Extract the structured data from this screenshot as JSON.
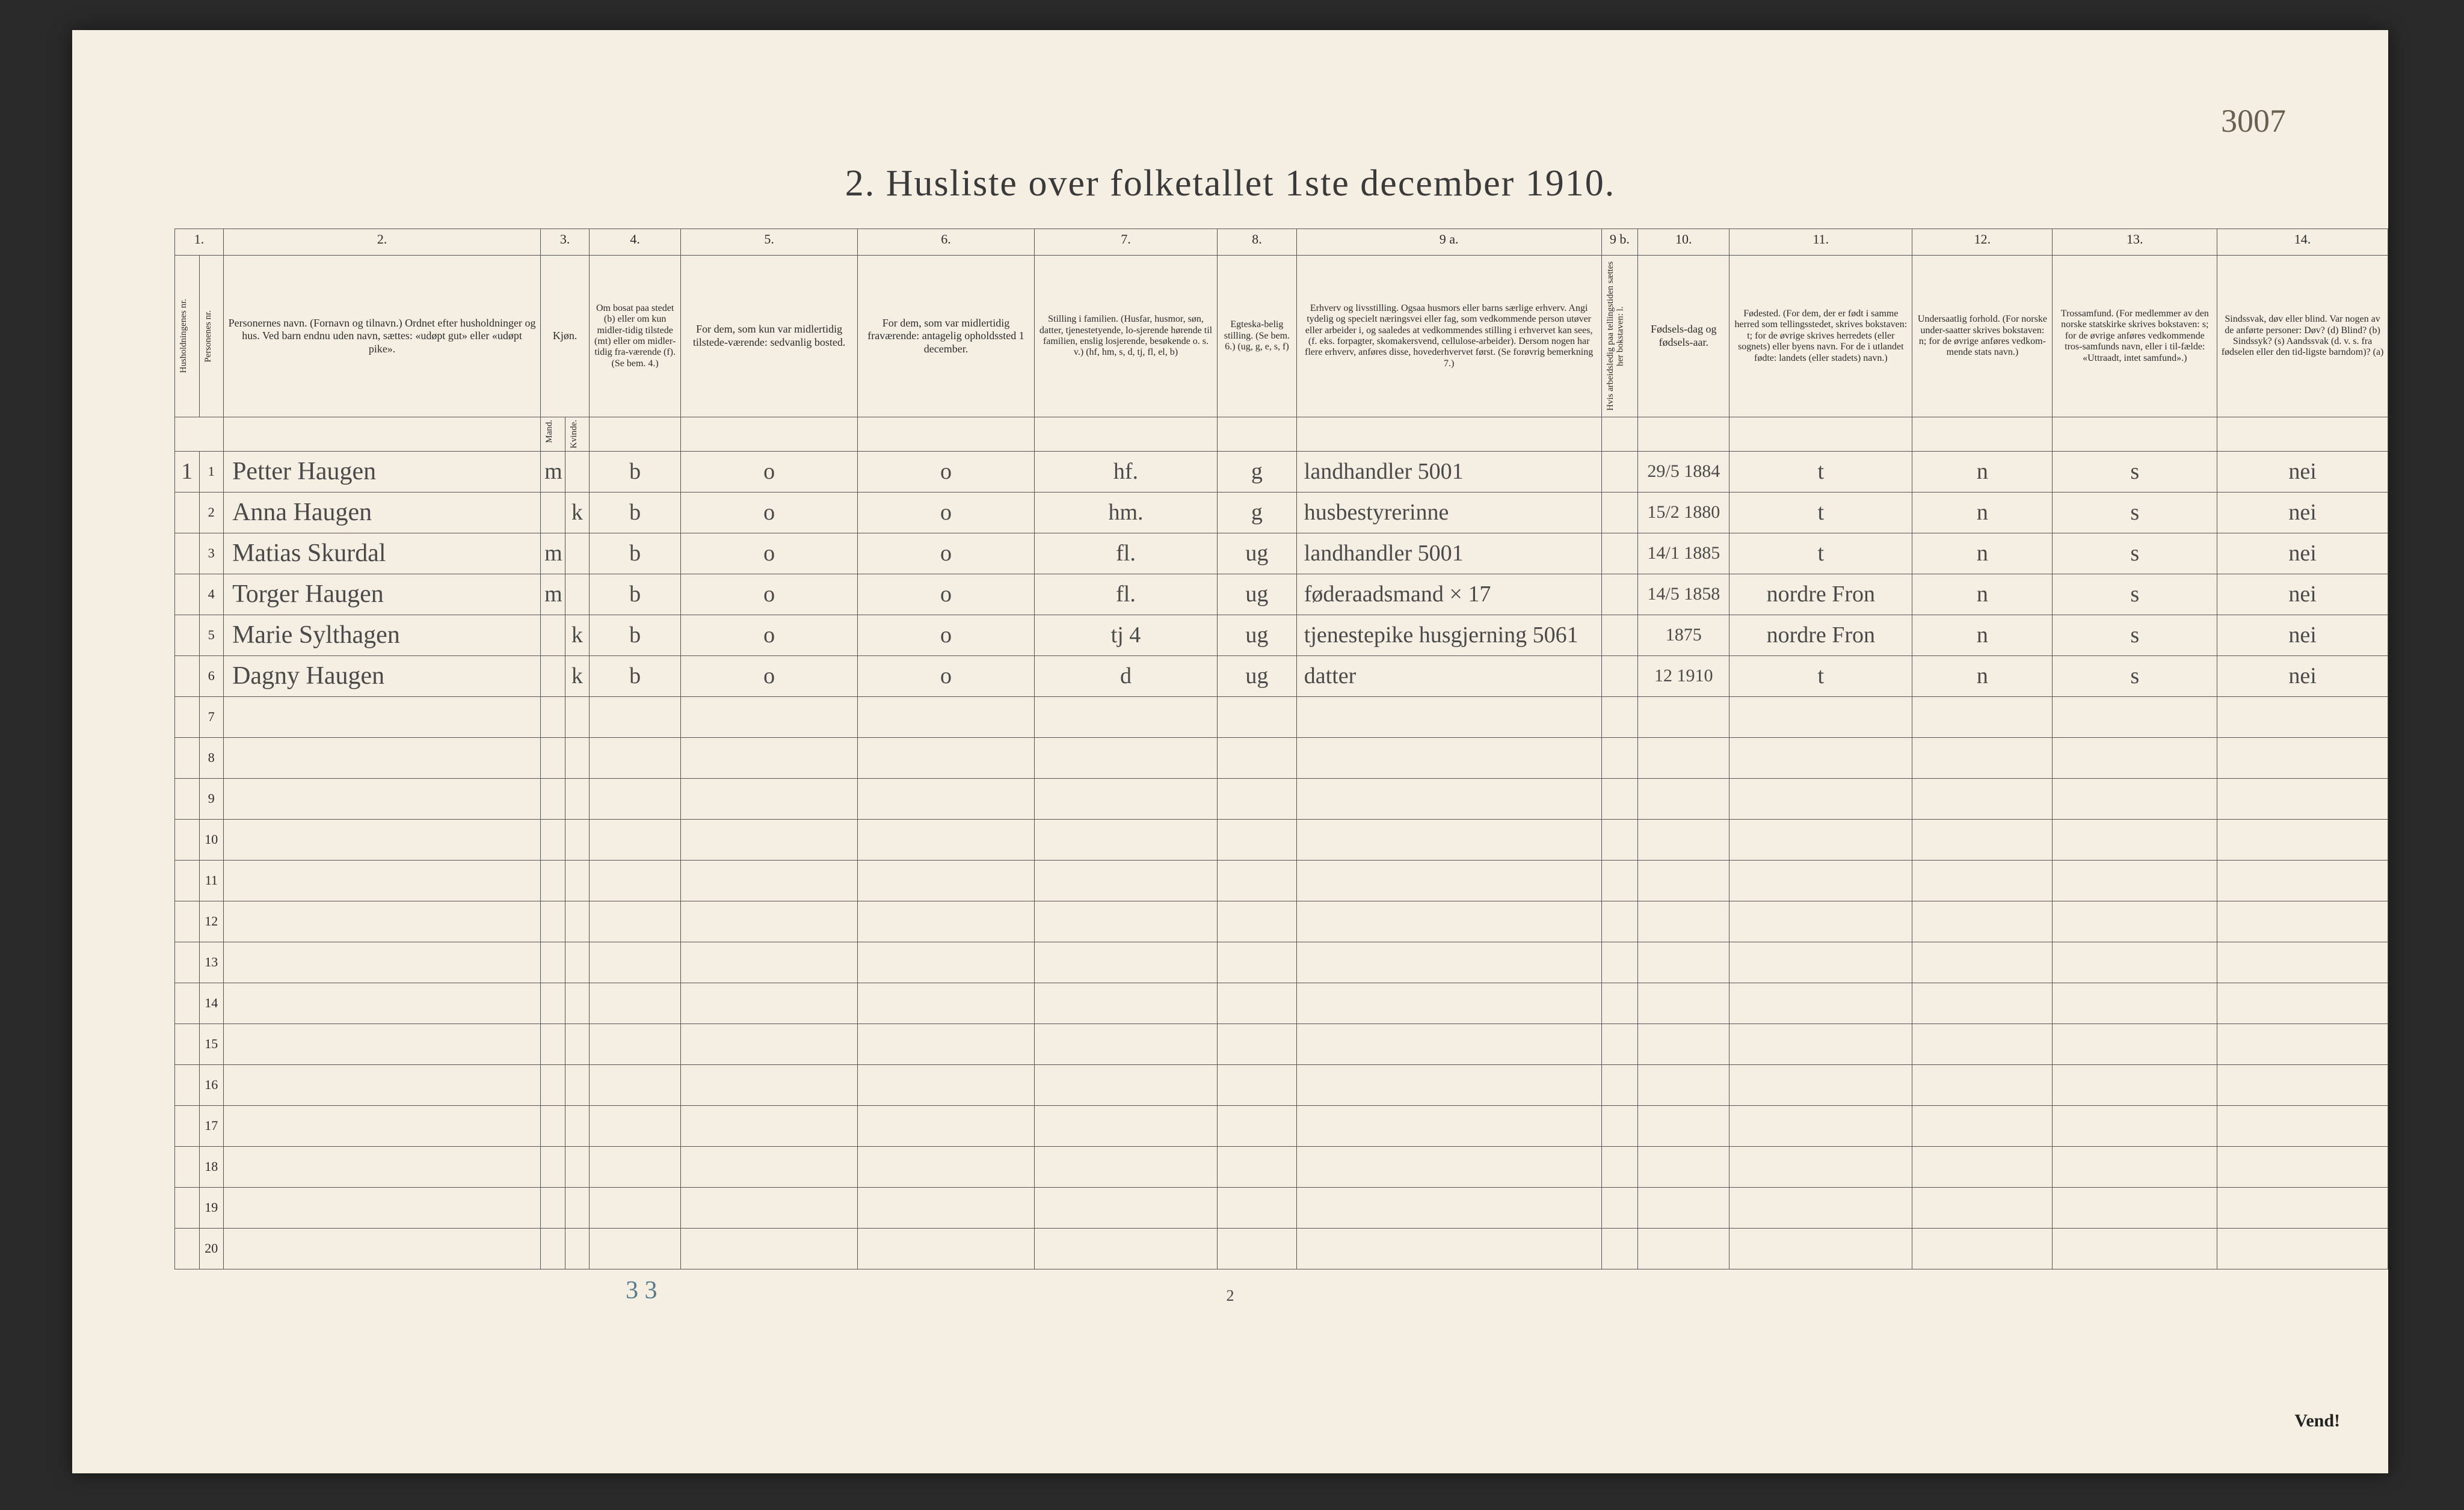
{
  "topRightMark": "3007",
  "title": "2.  Husliste over folketallet 1ste december 1910.",
  "columnNumbers": [
    "1.",
    "2.",
    "3.",
    "4.",
    "5.",
    "6.",
    "7.",
    "8.",
    "9 a.",
    "9 b.",
    "10.",
    "11.",
    "12.",
    "13.",
    "14."
  ],
  "headers": {
    "c1a": "Husholdningenes nr.",
    "c1b": "Personenes nr.",
    "c2": "Personernes navn.\n(Fornavn og tilnavn.)\nOrdnet efter husholdninger og hus.\nVed barn endnu uden navn, sættes: «udøpt gut» eller «udøpt pike».",
    "c3": "Kjøn.",
    "c3m": "Mand.",
    "c3k": "Kvinde.",
    "c3sub": "m.  k.",
    "c4": "Om bosat paa stedet (b) eller om kun midler-tidig tilstede (mt) eller om midler-tidig fra-værende (f). (Se bem. 4.)",
    "c5": "For dem, som kun var midlertidig tilstede-værende:\n\nsedvanlig bosted.",
    "c6": "For dem, som var midlertidig fraværende:\n\nantagelig opholdssted 1 december.",
    "c7": "Stilling i familien.\n(Husfar, husmor, søn, datter, tjenestetyende, lo-sjerende hørende til familien, enslig losjerende, besøkende o. s. v.)\n(hf, hm, s, d, tj, fl, el, b)",
    "c8": "Egteska-belig stilling.\n(Se bem. 6.)\n(ug, g, e, s, f)",
    "c9a": "Erhverv og livsstilling.\nOgsaa husmors eller barns særlige erhverv. Angi tydelig og specielt næringsvei eller fag, som vedkommende person utøver eller arbeider i, og saaledes at vedkommendes stilling i erhvervet kan sees, (f. eks. forpagter, skomakersvend, cellulose-arbeider). Dersom nogen har flere erhverv, anføres disse, hovederhvervet først.\n(Se forøvrig bemerkning 7.)",
    "c9b": "Hvis arbeidsledig paa tellingstiden sættes her bokstaven: l.",
    "c10": "Fødsels-dag og fødsels-aar.",
    "c11": "Fødested.\n(For dem, der er født i samme herred som tellingsstedet, skrives bokstaven: t; for de øvrige skrives herredets (eller sognets) eller byens navn. For de i utlandet fødte: landets (eller stadets) navn.)",
    "c12": "Undersaatlig forhold.\n(For norske under-saatter skrives bokstaven: n; for de øvrige anføres vedkom-mende stats navn.)",
    "c13": "Trossamfund.\n(For medlemmer av den norske statskirke skrives bokstaven: s; for de øvrige anføres vedkommende tros-samfunds navn, eller i til-fælde: «Uttraadt, intet samfund».)",
    "c14": "Sindssvak, døv eller blind.\nVar nogen av de anførte personer:\nDøv?    (d)\nBlind?   (b)\nSindssyk? (s)\nAandssvak (d. v. s. fra fødselen eller den tid-ligste barndom)? (a)"
  },
  "rows": [
    {
      "hnr": "1",
      "pnr": "1",
      "name": "Petter Haugen",
      "m": "m",
      "k": "",
      "b": "b",
      "c5": "o",
      "c6": "o",
      "c7": "hf.",
      "c8": "g",
      "c9a": "landhandler 5001",
      "c9b": "",
      "c10": "29/5 1884",
      "c11": "t",
      "c12": "n",
      "c13": "s",
      "c14": "nei"
    },
    {
      "hnr": "",
      "pnr": "2",
      "name": "Anna Haugen",
      "m": "",
      "k": "k",
      "b": "b",
      "c5": "o",
      "c6": "o",
      "c7": "hm.",
      "c8": "g",
      "c9a": "husbestyrerinne",
      "c9b": "",
      "c10": "15/2 1880",
      "c11": "t",
      "c12": "n",
      "c13": "s",
      "c14": "nei"
    },
    {
      "hnr": "",
      "pnr": "3",
      "name": "Matias Skurdal",
      "m": "m",
      "k": "",
      "b": "b",
      "c5": "o",
      "c6": "o",
      "c7": "fl.",
      "c8": "ug",
      "c9a": "landhandler 5001",
      "c9b": "",
      "c10": "14/1 1885",
      "c11": "t",
      "c12": "n",
      "c13": "s",
      "c14": "nei"
    },
    {
      "hnr": "",
      "pnr": "4",
      "name": "Torger Haugen",
      "m": "m",
      "k": "",
      "b": "b",
      "c5": "o",
      "c6": "o",
      "c7": "fl.",
      "c8": "ug",
      "c9a": "føderaadsmand × 17",
      "c9b": "",
      "c10": "14/5 1858",
      "c11": "nordre Fron",
      "c12": "n",
      "c13": "s",
      "c14": "nei"
    },
    {
      "hnr": "",
      "pnr": "5",
      "name": "Marie Sylthagen",
      "m": "",
      "k": "k",
      "b": "b",
      "c5": "o",
      "c6": "o",
      "c7": "tj   4",
      "c8": "ug",
      "c9a": "tjenestepike husgjerning 5061",
      "c9b": "",
      "c10": "1875",
      "c11": "nordre Fron",
      "c12": "n",
      "c13": "s",
      "c14": "nei"
    },
    {
      "hnr": "",
      "pnr": "6",
      "name": "Dagny Haugen",
      "m": "",
      "k": "k",
      "b": "b",
      "c5": "o",
      "c6": "o",
      "c7": "d",
      "c8": "ug",
      "c9a": "datter",
      "c9b": "",
      "c10": "12 1910",
      "c11": "t",
      "c12": "n",
      "c13": "s",
      "c14": "nei"
    }
  ],
  "emptyRowNumbers": [
    "7",
    "8",
    "9",
    "10",
    "11",
    "12",
    "13",
    "14",
    "15",
    "16",
    "17",
    "18",
    "19",
    "20"
  ],
  "footerMark": "3  3",
  "footerPage": "2",
  "vend": "Vend!"
}
